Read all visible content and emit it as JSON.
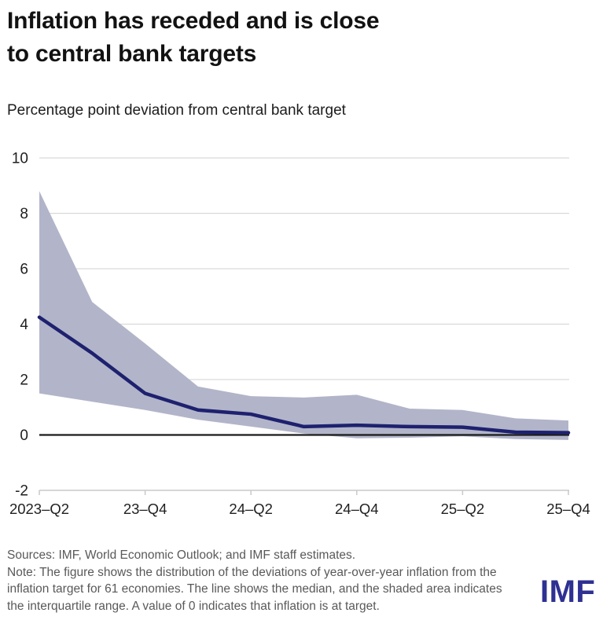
{
  "header": {
    "title_line1": "Inflation has receded and is close",
    "title_line2": "to central bank targets",
    "subtitle": "Percentage point deviation from central bank target"
  },
  "chart_data": {
    "type": "line",
    "title": "Inflation has receded and is close to central bank targets",
    "subtitle": "Percentage point deviation from central bank target",
    "x": [
      "2023-Q2",
      "2023-Q3",
      "2023-Q4",
      "2024-Q1",
      "2024-Q2",
      "2024-Q3",
      "2024-Q4",
      "2025-Q1",
      "2025-Q2",
      "2025-Q3",
      "2025-Q4"
    ],
    "xtick_labels": [
      "2023–Q2",
      "23–Q4",
      "24–Q2",
      "24–Q4",
      "25–Q2",
      "25–Q4"
    ],
    "yticks": [
      10,
      8,
      6,
      4,
      2,
      0,
      -2
    ],
    "ylim": [
      -2,
      10
    ],
    "grid": "horizontal",
    "legend": "none",
    "series": [
      {
        "name": "Median",
        "type": "line",
        "color": "#1e216e",
        "values": [
          4.25,
          2.95,
          1.5,
          0.9,
          0.75,
          0.3,
          0.35,
          0.3,
          0.28,
          0.1,
          0.08
        ]
      },
      {
        "name": "Interquartile range",
        "type": "band",
        "color": "#b2b5c9",
        "upper": [
          8.8,
          4.8,
          3.3,
          1.75,
          1.4,
          1.35,
          1.45,
          0.95,
          0.9,
          0.6,
          0.52
        ],
        "lower": [
          1.5,
          1.2,
          0.9,
          0.55,
          0.3,
          0.05,
          -0.12,
          -0.1,
          -0.05,
          -0.15,
          -0.18
        ]
      }
    ],
    "zero_line_color": "#1a1a1a",
    "grid_color": "#d9d9d9",
    "axis_color": "#c9c9c9",
    "tick_label_color": "#1f1f1f"
  },
  "footer": {
    "sources": "Sources: IMF, World Economic Outlook; and IMF staff estimates.",
    "note": "Note: The figure shows the distribution of the deviations of year-over-year inflation from the inflation target for 61 economies. The line shows the median, and the shaded area indicates the interquartile range. A value of 0 indicates that inflation is at target.",
    "logo": "IMF",
    "logo_color": "#2e3192"
  }
}
